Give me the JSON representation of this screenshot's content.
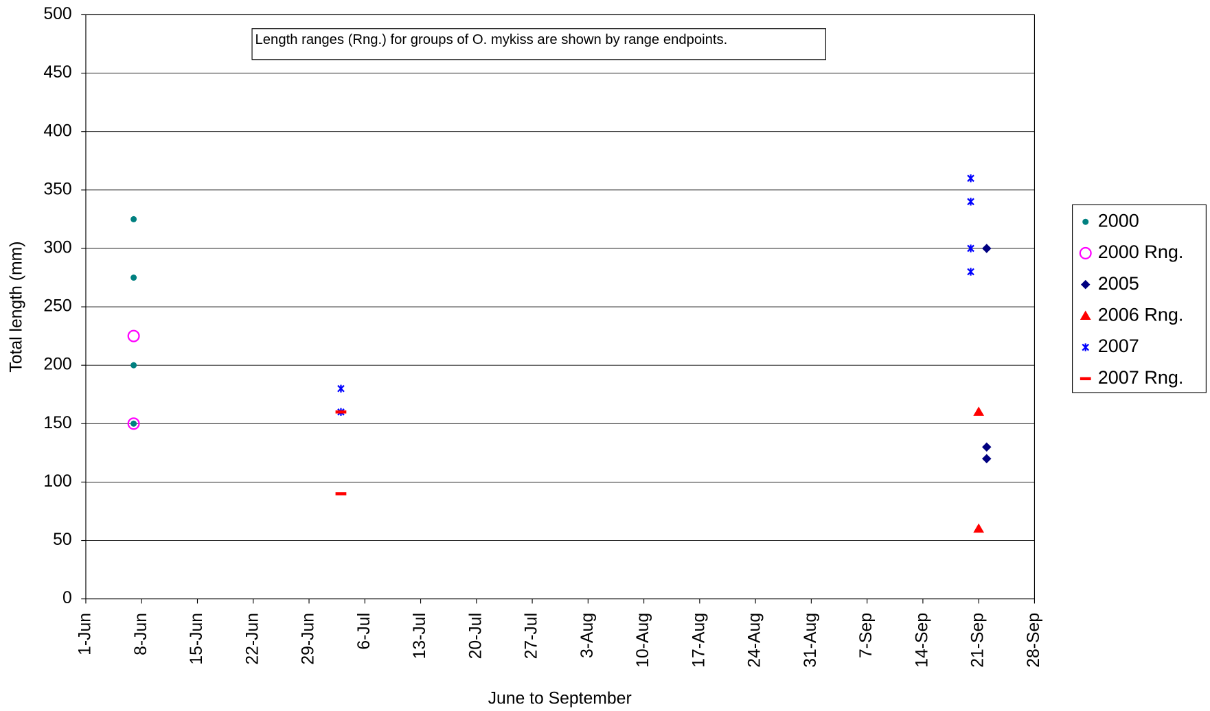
{
  "chart_data": {
    "type": "scatter",
    "annotation": "Length ranges (Rng.) for groups of O. mykiss are shown by range endpoints.",
    "x_label": "June to September",
    "y_label": "Total length (mm)",
    "xlim": [
      "1-Jun",
      "28-Sep"
    ],
    "xticks": [
      "1-Jun",
      "8-Jun",
      "15-Jun",
      "22-Jun",
      "29-Jun",
      "6-Jul",
      "13-Jul",
      "20-Jul",
      "27-Jul",
      "3-Aug",
      "10-Aug",
      "17-Aug",
      "24-Aug",
      "31-Aug",
      "7-Sep",
      "14-Sep",
      "21-Sep",
      "28-Sep"
    ],
    "ylim": [
      0,
      500
    ],
    "yticks": [
      0,
      50,
      100,
      150,
      200,
      250,
      300,
      350,
      400,
      450,
      500
    ],
    "grid": true,
    "legend": "right",
    "series": [
      {
        "name": "2000",
        "color": "#008080",
        "marker": "dot",
        "x": [
          "7-Jun",
          "7-Jun",
          "7-Jun",
          "7-Jun"
        ],
        "values": [
          325,
          275,
          200,
          150
        ]
      },
      {
        "name": "2000 Rng.",
        "color": "#ff00ff",
        "marker": "open-circle",
        "x": [
          "7-Jun",
          "7-Jun"
        ],
        "values": [
          225,
          150
        ]
      },
      {
        "name": "2005",
        "color": "#000080",
        "marker": "diamond",
        "x": [
          "22-Sep",
          "22-Sep",
          "22-Sep"
        ],
        "values": [
          300,
          130,
          120
        ]
      },
      {
        "name": "2006 Rng.",
        "color": "#ff0000",
        "marker": "triangle",
        "x": [
          "21-Sep",
          "21-Sep"
        ],
        "values": [
          160,
          60
        ]
      },
      {
        "name": "2007",
        "color": "#0000ff",
        "marker": "star",
        "x": [
          "3-Jul",
          "3-Jul",
          "20-Sep",
          "20-Sep",
          "20-Sep",
          "20-Sep"
        ],
        "values": [
          180,
          160,
          360,
          340,
          300,
          280
        ]
      },
      {
        "name": "2007 Rng.",
        "color": "#ff0000",
        "marker": "dash",
        "x": [
          "3-Jul",
          "3-Jul"
        ],
        "values": [
          160,
          90
        ]
      }
    ]
  }
}
